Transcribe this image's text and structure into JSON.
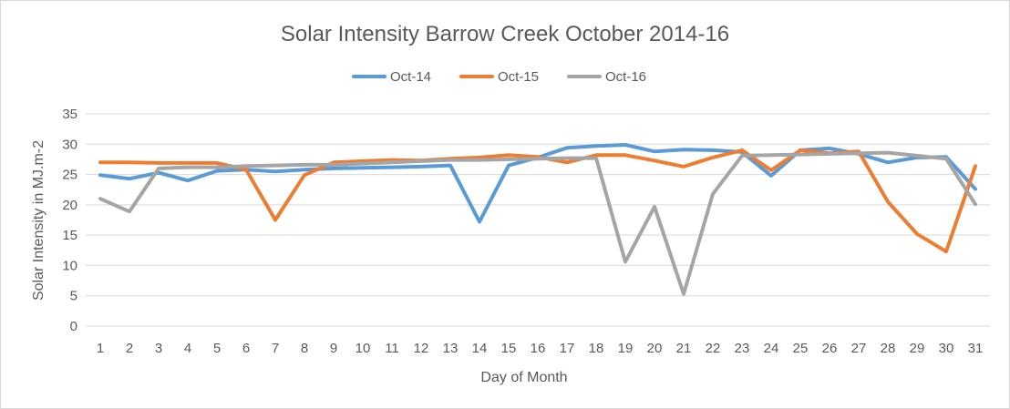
{
  "chart_data": {
    "type": "line",
    "title": "Solar Intensity Barrow Creek October 2014-16",
    "xlabel": "Day of Month",
    "ylabel": "Solar Intensity in MJ.m-2",
    "ylim": [
      0,
      35
    ],
    "yticks": [
      0,
      5,
      10,
      15,
      20,
      25,
      30,
      35
    ],
    "grid": true,
    "legend_position": "top",
    "categories": [
      "1",
      "2",
      "3",
      "4",
      "5",
      "6",
      "7",
      "8",
      "9",
      "10",
      "11",
      "12",
      "13",
      "14",
      "15",
      "16",
      "17",
      "18",
      "19",
      "20",
      "21",
      "22",
      "23",
      "24",
      "25",
      "26",
      "27",
      "28",
      "29",
      "30",
      "31"
    ],
    "series": [
      {
        "name": "Oct-14",
        "color": "#5b9bd5",
        "values": [
          24.9,
          24.3,
          25.3,
          24.0,
          25.6,
          25.8,
          25.5,
          25.8,
          26.0,
          26.1,
          26.2,
          26.3,
          26.5,
          17.2,
          26.5,
          27.8,
          29.4,
          29.7,
          29.9,
          28.8,
          29.1,
          29.0,
          28.7,
          24.8,
          29.0,
          29.3,
          28.4,
          27.0,
          27.8,
          27.9,
          22.6
        ]
      },
      {
        "name": "Oct-15",
        "color": "#ed7d31",
        "values": [
          27.0,
          27.0,
          26.9,
          26.9,
          26.9,
          25.8,
          17.5,
          24.9,
          27.0,
          27.2,
          27.4,
          27.3,
          27.6,
          27.8,
          28.2,
          27.9,
          27.0,
          28.2,
          28.2,
          27.3,
          26.3,
          27.8,
          29.0,
          25.7,
          29.0,
          28.5,
          28.8,
          20.5,
          15.2,
          12.3,
          26.4
        ]
      },
      {
        "name": "Oct-16",
        "color": "#a5a5a5",
        "values": [
          21.0,
          18.9,
          26.0,
          26.2,
          26.2,
          26.4,
          26.5,
          26.6,
          26.6,
          26.8,
          27.0,
          27.2,
          27.4,
          27.4,
          27.5,
          27.6,
          27.7,
          27.7,
          10.6,
          19.7,
          5.3,
          21.8,
          28.1,
          28.2,
          28.3,
          28.4,
          28.5,
          28.6,
          28.1,
          27.6,
          20.1
        ]
      }
    ]
  }
}
